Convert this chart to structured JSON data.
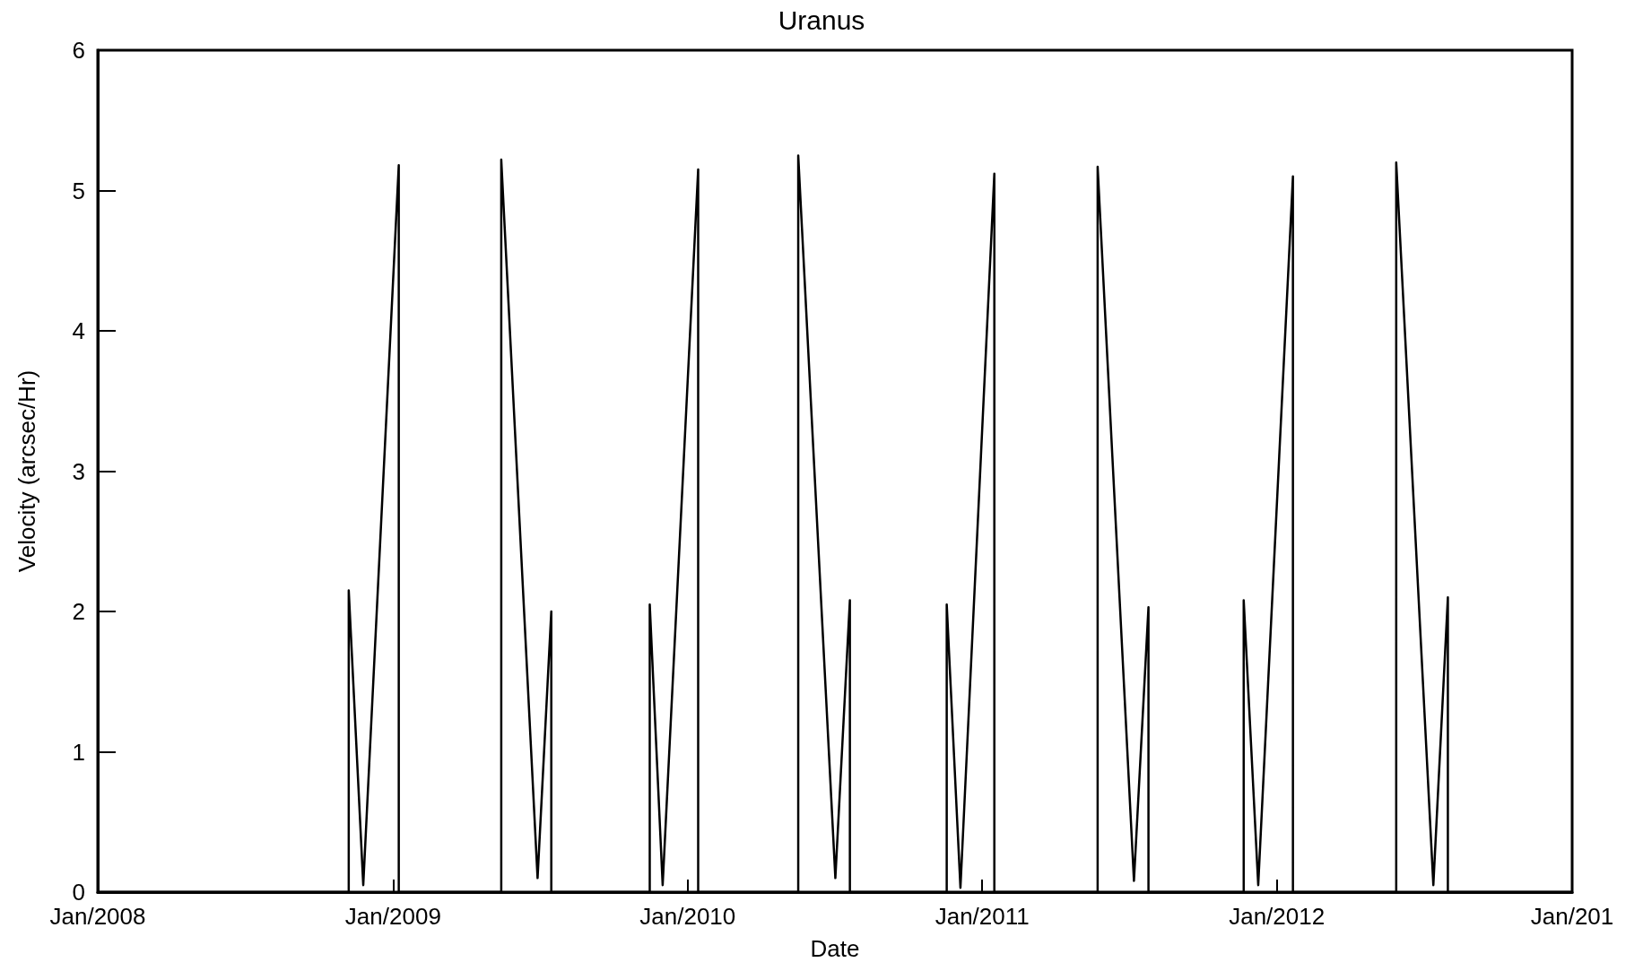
{
  "chart_data": {
    "type": "line",
    "title": "Uranus",
    "xlabel": "Date",
    "ylabel": "Velocity (arcsec/Hr)",
    "x": [
      "2008-01-01",
      "2008-11-07",
      "2008-11-07",
      "2008-11-25",
      "2009-01-08",
      "2009-01-08",
      "2009-05-15",
      "2009-05-15",
      "2009-06-29",
      "2009-07-16",
      "2009-07-16",
      "2009-11-15",
      "2009-11-15",
      "2009-12-01",
      "2010-01-14",
      "2010-01-14",
      "2010-05-18",
      "2010-05-18",
      "2010-07-03",
      "2010-07-21",
      "2010-07-21",
      "2010-11-18",
      "2010-11-18",
      "2010-12-05",
      "2011-01-16",
      "2011-01-16",
      "2011-05-24",
      "2011-05-24",
      "2011-07-08",
      "2011-07-26",
      "2011-07-26",
      "2011-11-21",
      "2011-11-21",
      "2011-12-09",
      "2012-01-21",
      "2012-01-21",
      "2012-05-28",
      "2012-05-28",
      "2012-07-13",
      "2012-07-31",
      "2012-07-31",
      "2013-01-01"
    ],
    "series": [
      {
        "color": "#000000",
        "values": [
          0,
          0,
          2.15,
          0.05,
          5.18,
          0,
          0,
          5.22,
          0.1,
          2.0,
          0,
          0,
          2.05,
          0.05,
          5.15,
          0,
          0,
          5.25,
          0.1,
          2.08,
          0,
          0,
          2.05,
          0.03,
          5.12,
          0,
          0,
          5.17,
          0.08,
          2.03,
          0,
          0,
          2.08,
          0.05,
          5.1,
          0,
          0,
          5.2,
          0.05,
          2.1,
          0,
          0
        ]
      }
    ],
    "xlim": [
      "2008-01-01",
      "2013-01-01"
    ],
    "xticks": [
      {
        "value": "2008-01-01",
        "label": "Jan/2008"
      },
      {
        "value": "2009-01-01",
        "label": "Jan/2009"
      },
      {
        "value": "2010-01-01",
        "label": "Jan/2010"
      },
      {
        "value": "2011-01-01",
        "label": "Jan/2011"
      },
      {
        "value": "2012-01-01",
        "label": "Jan/2012"
      },
      {
        "value": "2013-01-01",
        "label": "Jan/201"
      }
    ],
    "ylim": [
      0,
      6
    ],
    "yticks": [
      0,
      1,
      2,
      3,
      4,
      5,
      6
    ],
    "grid": false,
    "marker": "none",
    "line_style": "solid"
  }
}
